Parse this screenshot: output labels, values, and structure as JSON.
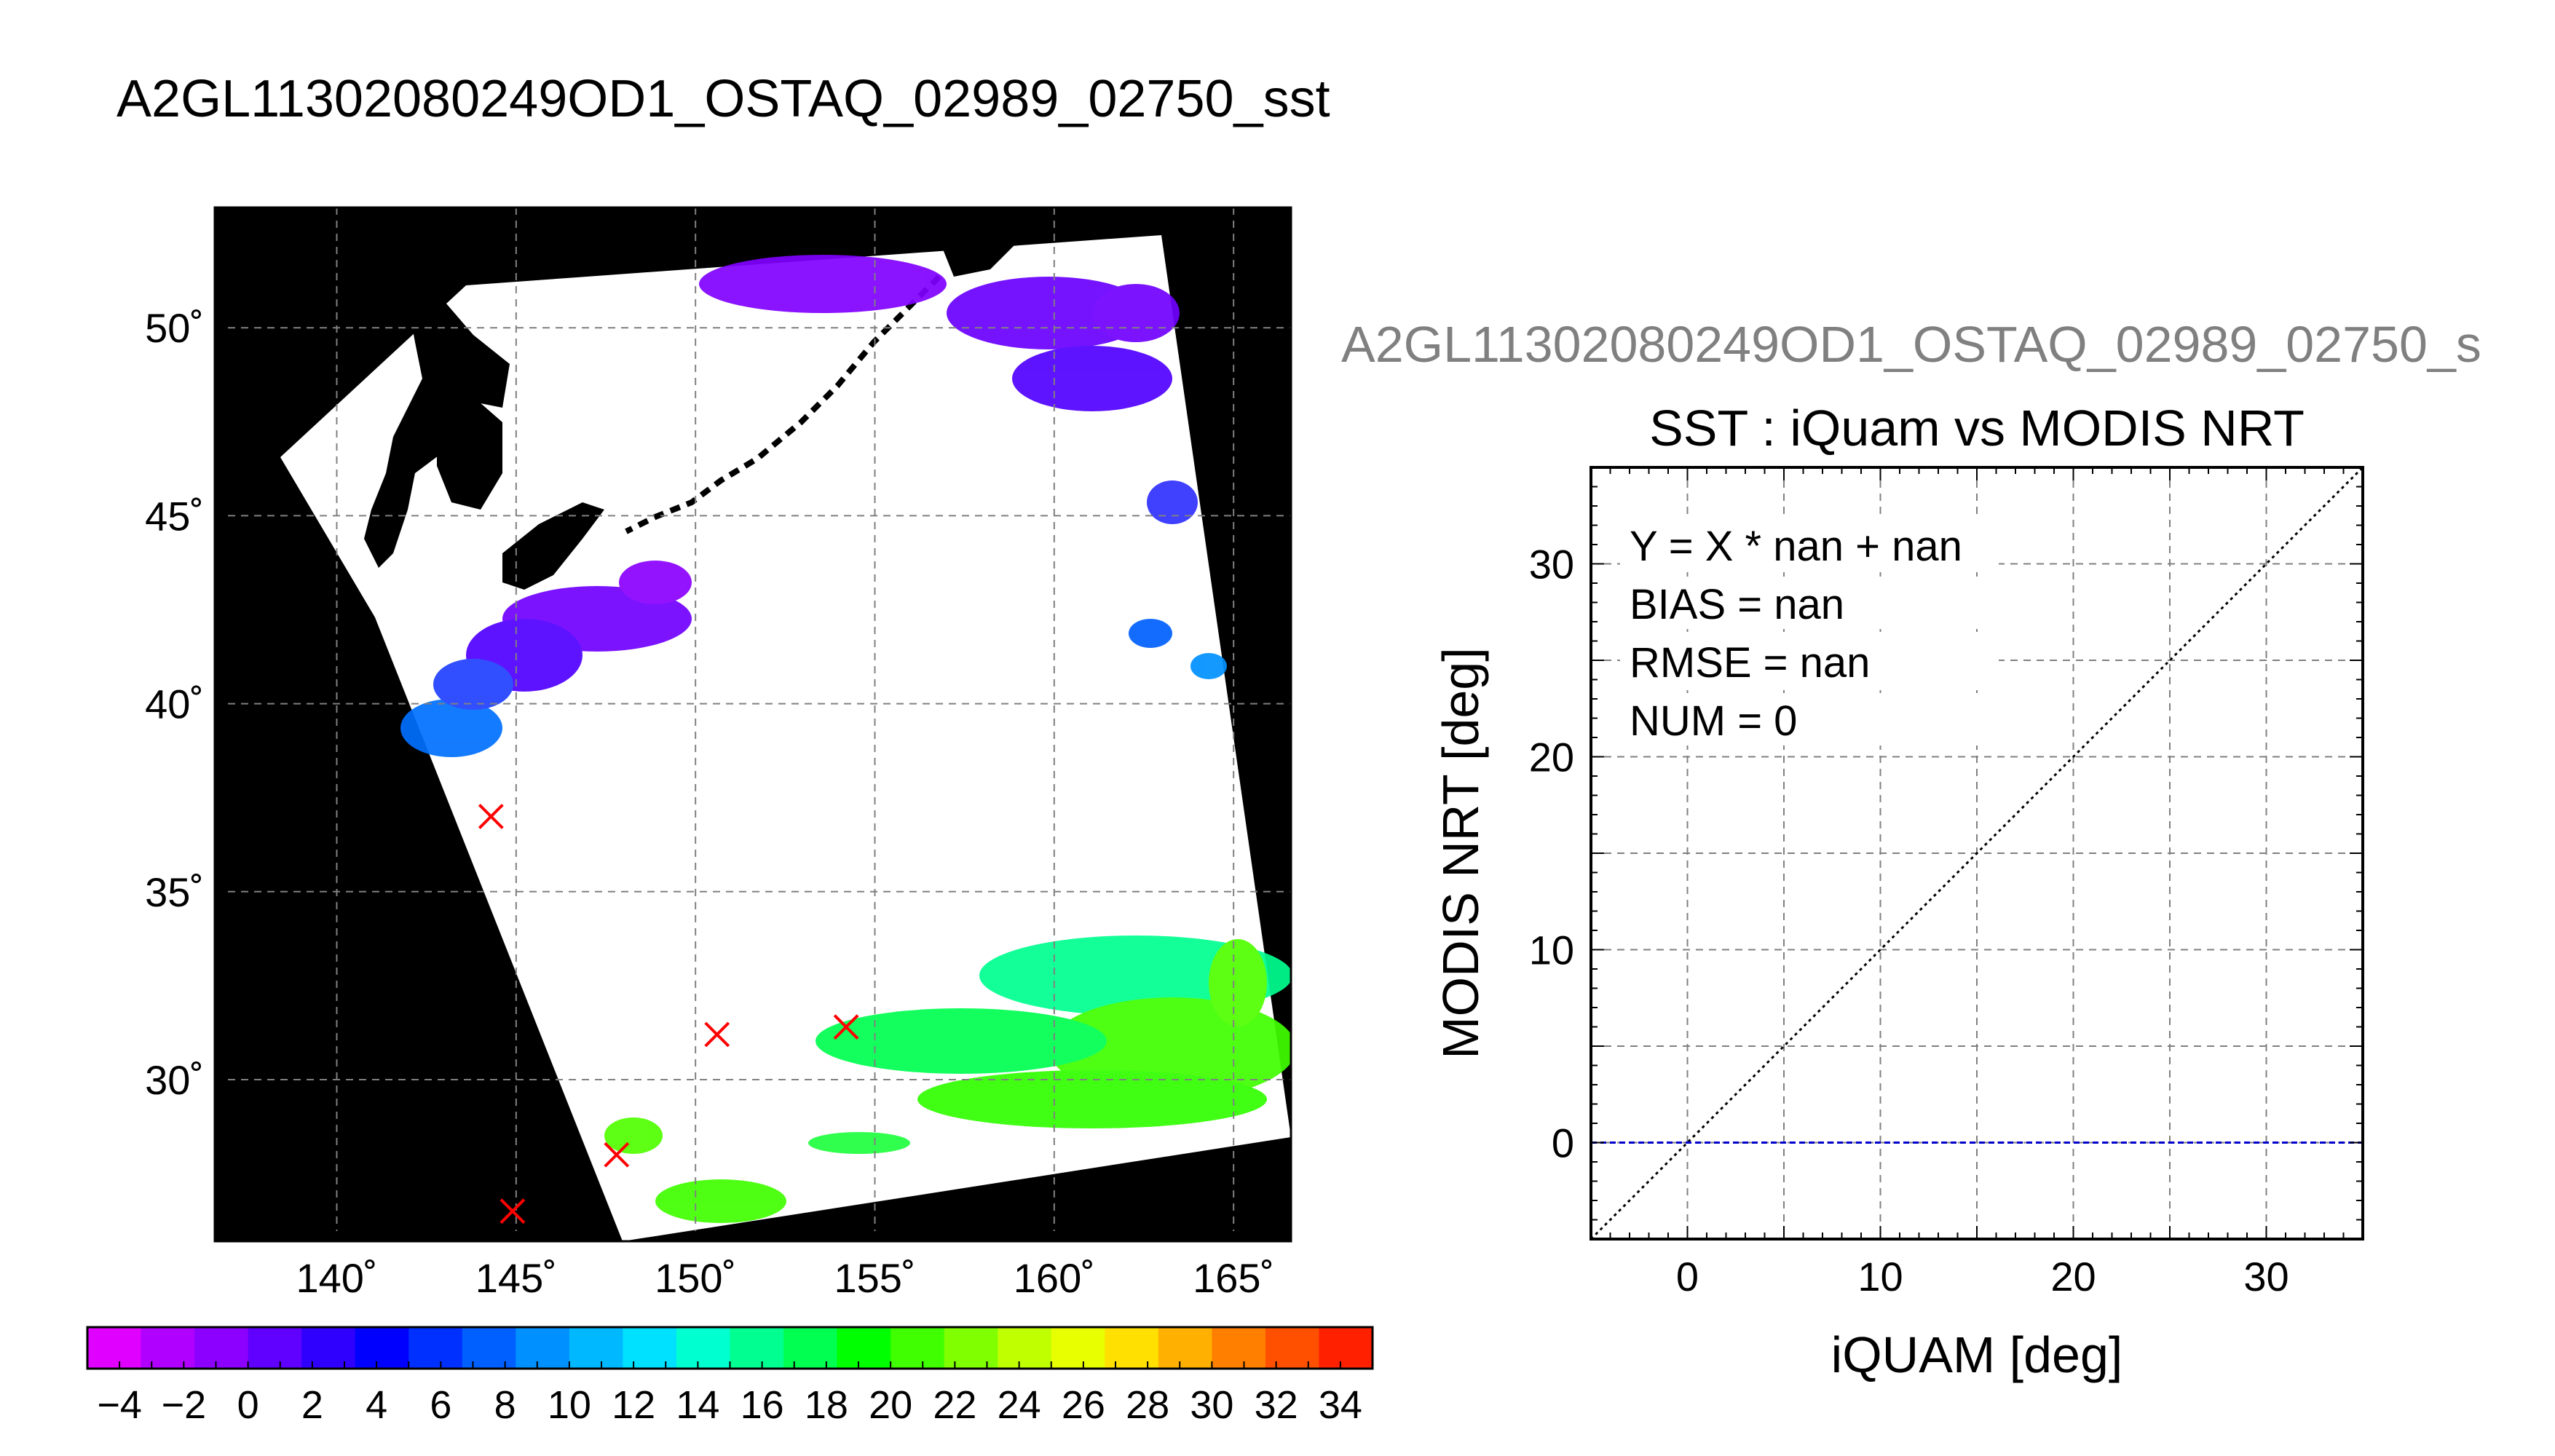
{
  "figure_title": "A2GL11302080249OD1_OSTAQ_02989_02750_sst",
  "chart_data": [
    {
      "type": "heatmap",
      "title": "",
      "x_ticks": [
        140,
        145,
        150,
        155,
        160,
        165
      ],
      "x_tick_labels": [
        "140˚",
        "145˚",
        "150˚",
        "155˚",
        "160˚",
        "165˚"
      ],
      "y_ticks": [
        30,
        35,
        40,
        45,
        50
      ],
      "y_tick_labels": [
        "30˚",
        "35˚",
        "40˚",
        "45˚",
        "50˚"
      ],
      "xlim": [
        136.6,
        166.6
      ],
      "ylim": [
        25.7,
        53.2
      ],
      "grid": true,
      "markers": [
        {
          "lon": 144.3,
          "lat": 37.0
        },
        {
          "lon": 150.6,
          "lat": 31.2
        },
        {
          "lon": 154.2,
          "lat": 31.4
        },
        {
          "lon": 147.8,
          "lat": 28.0
        },
        {
          "lon": 144.9,
          "lat": 26.5
        }
      ],
      "colorbar": {
        "min": -5,
        "max": 35,
        "tick_labels": [
          "−4",
          "−2",
          "0",
          "2",
          "4",
          "6",
          "8",
          "10",
          "12",
          "14",
          "16",
          "18",
          "20",
          "22",
          "24",
          "26",
          "28",
          "30",
          "32",
          "34"
        ],
        "colors": [
          "#e000ff",
          "#b000ff",
          "#8c00ff",
          "#6000ff",
          "#3000ff",
          "#0000ff",
          "#0030ff",
          "#0060ff",
          "#0090ff",
          "#00b8ff",
          "#00e0ff",
          "#00ffd0",
          "#00ff90",
          "#00ff50",
          "#00ff00",
          "#40ff00",
          "#80ff00",
          "#c0ff00",
          "#e8ff00",
          "#ffe000",
          "#ffb000",
          "#ff8000",
          "#ff5000",
          "#ff2000"
        ]
      }
    },
    {
      "type": "scatter",
      "header": "A2GL11302080249OD1_OSTAQ_02989_02750_s",
      "title": "SST : iQuam vs MODIS NRT",
      "xlabel": "iQUAM [deg]",
      "ylabel": "MODIS NRT [deg]",
      "xlim": [
        -5,
        35
      ],
      "ylim": [
        -5,
        35
      ],
      "x_ticks": [
        0,
        10,
        20,
        30
      ],
      "y_ticks": [
        0,
        10,
        20,
        30
      ],
      "grid_step": 5,
      "points": [],
      "lines": [
        {
          "name": "1:1",
          "style": "dotted",
          "color": "#000000",
          "x": [
            -5,
            35
          ],
          "y": [
            -5,
            35
          ]
        },
        {
          "name": "fit",
          "style": "dashed",
          "color": "#0000cc",
          "x": [
            -5,
            35
          ],
          "y": [
            0,
            0
          ]
        }
      ],
      "stats": [
        "Y = X * nan + nan",
        "BIAS = nan",
        "RMSE = nan",
        "NUM = 0"
      ]
    }
  ]
}
